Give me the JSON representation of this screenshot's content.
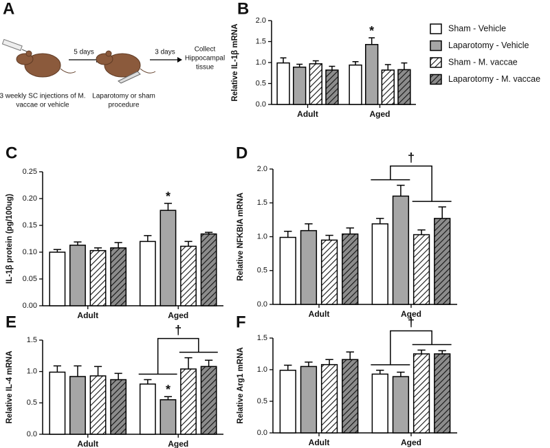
{
  "diagram": {
    "panel": "A",
    "arrows": [
      "5 days",
      "3 days"
    ],
    "caption_1": [
      "3 weekly SC injections of M.",
      "vaccae or vehicle"
    ],
    "caption_2": [
      "Laparotomy or sham",
      "procedure"
    ],
    "end_text": [
      "Collect",
      "Hippocampal",
      "tissue"
    ]
  },
  "chart_data": [
    {
      "type": "bar",
      "panel": "B",
      "ylabel": "Relative IL-1β mRNA",
      "categories": [
        "Adult",
        "Aged"
      ],
      "ylim": [
        0,
        2.0
      ],
      "yticks": [
        {
          "value": 0,
          "label": "0.0"
        },
        0.5,
        {
          "value": 1,
          "label": "1.0"
        },
        1.5,
        {
          "value": 2,
          "label": "2.0"
        }
      ],
      "series": [
        {
          "name": "Sham - Vehicle",
          "color": "#ffffff",
          "hatch": false,
          "values": [
            0.99,
            0.94
          ],
          "errors": [
            0.12,
            0.08
          ]
        },
        {
          "name": "Laparotomy - Vehicle",
          "color": "#a6a6a6",
          "hatch": false,
          "values": [
            0.89,
            1.43
          ],
          "errors": [
            0.07,
            0.16
          ]
        },
        {
          "name": "Sham - M. vaccae",
          "color": "#ffffff",
          "hatch": true,
          "values": [
            0.97,
            0.82
          ],
          "errors": [
            0.07,
            0.13
          ]
        },
        {
          "name": "Laparotomy - M. vaccae",
          "color": "#8c8c8c",
          "hatch": true,
          "values": [
            0.82,
            0.83
          ],
          "errors": [
            0.09,
            0.16
          ]
        }
      ],
      "significance": [
        {
          "text": "*",
          "category": 1,
          "series": 1
        }
      ]
    },
    {
      "type": "bar",
      "panel": "C",
      "ylabel": "IL-1β protein (pg/100ug)",
      "categories": [
        "Adult",
        "Aged"
      ],
      "ylim": [
        0,
        0.25
      ],
      "yticks": [
        {
          "value": 0,
          "label": "0.00"
        },
        {
          "value": 0.05,
          "label": "0.05"
        },
        {
          "value": 0.1,
          "label": "0.10"
        },
        {
          "value": 0.15,
          "label": "0.15"
        },
        {
          "value": 0.2,
          "label": "0.20"
        },
        {
          "value": 0.25,
          "label": "0.25"
        }
      ],
      "series": [
        {
          "color": "#ffffff",
          "hatch": false,
          "values": [
            0.1,
            0.12
          ],
          "errors": [
            0.005,
            0.011
          ]
        },
        {
          "color": "#a6a6a6",
          "hatch": false,
          "values": [
            0.113,
            0.178
          ],
          "errors": [
            0.006,
            0.013
          ]
        },
        {
          "color": "#ffffff",
          "hatch": true,
          "values": [
            0.103,
            0.111
          ],
          "errors": [
            0.005,
            0.009
          ]
        },
        {
          "color": "#8c8c8c",
          "hatch": true,
          "values": [
            0.108,
            0.134
          ],
          "errors": [
            0.01,
            0.003
          ]
        }
      ],
      "significance": [
        {
          "text": "*",
          "category": 1,
          "series": 1
        }
      ]
    },
    {
      "type": "bar",
      "panel": "D",
      "ylabel": "Relative NFKBIA mRNA",
      "categories": [
        "Adult",
        "Aged"
      ],
      "ylim": [
        0,
        2.0
      ],
      "yticks": [
        {
          "value": 0,
          "label": "0.0"
        },
        0.5,
        {
          "value": 1,
          "label": "1.0"
        },
        1.5,
        {
          "value": 2,
          "label": "2.0"
        }
      ],
      "series": [
        {
          "color": "#ffffff",
          "hatch": false,
          "values": [
            0.99,
            1.19
          ],
          "errors": [
            0.09,
            0.08
          ]
        },
        {
          "color": "#a6a6a6",
          "hatch": false,
          "values": [
            1.09,
            1.6
          ],
          "errors": [
            0.1,
            0.16
          ]
        },
        {
          "color": "#ffffff",
          "hatch": true,
          "values": [
            0.95,
            1.03
          ],
          "errors": [
            0.07,
            0.07
          ]
        },
        {
          "color": "#8c8c8c",
          "hatch": true,
          "values": [
            1.04,
            1.27
          ],
          "errors": [
            0.09,
            0.17
          ]
        }
      ],
      "brackets": [
        {
          "text": "†",
          "category": 1
        }
      ]
    },
    {
      "type": "bar",
      "panel": "E",
      "ylabel": "Relative IL-4 mRNA",
      "categories": [
        "Adult",
        "Aged"
      ],
      "ylim": [
        0,
        1.5
      ],
      "yticks": [
        {
          "value": 0,
          "label": "0.0"
        },
        0.5,
        {
          "value": 1,
          "label": "1.0"
        },
        1.5
      ],
      "series": [
        {
          "color": "#ffffff",
          "hatch": false,
          "values": [
            0.99,
            0.8
          ],
          "errors": [
            0.1,
            0.07
          ]
        },
        {
          "color": "#a6a6a6",
          "hatch": false,
          "values": [
            0.92,
            0.55
          ],
          "errors": [
            0.17,
            0.05
          ]
        },
        {
          "color": "#ffffff",
          "hatch": true,
          "values": [
            0.93,
            1.04
          ],
          "errors": [
            0.15,
            0.18
          ]
        },
        {
          "color": "#8c8c8c",
          "hatch": true,
          "values": [
            0.87,
            1.08
          ],
          "errors": [
            0.1,
            0.1
          ]
        }
      ],
      "significance": [
        {
          "text": "*",
          "category": 1,
          "series": 1
        }
      ],
      "brackets": [
        {
          "text": "†",
          "category": 1
        }
      ]
    },
    {
      "type": "bar",
      "panel": "F",
      "ylabel": "Relative Arg1 mRNA",
      "categories": [
        "Adult",
        "Aged"
      ],
      "ylim": [
        0,
        1.5
      ],
      "yticks": [
        {
          "value": 0,
          "label": "0.0"
        },
        0.5,
        {
          "value": 1,
          "label": "1.0"
        },
        1.5
      ],
      "series": [
        {
          "color": "#ffffff",
          "hatch": false,
          "values": [
            0.99,
            0.93
          ],
          "errors": [
            0.08,
            0.06
          ]
        },
        {
          "color": "#a6a6a6",
          "hatch": false,
          "values": [
            1.05,
            0.89
          ],
          "errors": [
            0.07,
            0.07
          ]
        },
        {
          "color": "#ffffff",
          "hatch": true,
          "values": [
            1.08,
            1.25
          ],
          "errors": [
            0.08,
            0.06
          ]
        },
        {
          "color": "#8c8c8c",
          "hatch": true,
          "values": [
            1.16,
            1.25
          ],
          "errors": [
            0.12,
            0.05
          ]
        }
      ],
      "brackets": [
        {
          "text": "†",
          "category": 1
        }
      ]
    }
  ]
}
